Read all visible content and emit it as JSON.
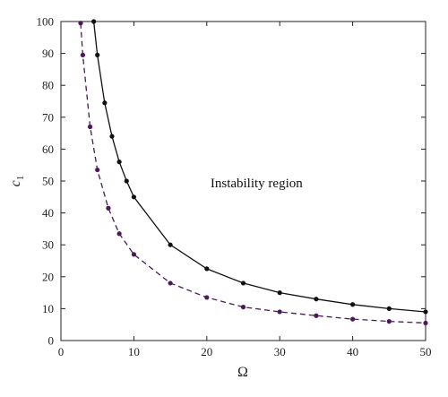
{
  "chart_data": {
    "type": "line",
    "title": "",
    "xlabel": "Ω",
    "ylabel": "c",
    "ylabel_subscript": "1",
    "xlim": [
      0,
      50
    ],
    "ylim": [
      0,
      100
    ],
    "x_ticks": [
      0,
      10,
      20,
      30,
      40,
      50
    ],
    "y_ticks": [
      0,
      10,
      20,
      30,
      40,
      50,
      60,
      70,
      80,
      90,
      100
    ],
    "grid": false,
    "annotations": [
      {
        "text": "Instability region",
        "x": 20.5,
        "y": 49.5
      }
    ],
    "series": [
      {
        "style": "solid",
        "color": "#111111",
        "points": [
          [
            4.5,
            100
          ],
          [
            5,
            89.5
          ],
          [
            6,
            74.5
          ],
          [
            7,
            64
          ],
          [
            8,
            56
          ],
          [
            9,
            50
          ],
          [
            10,
            45
          ],
          [
            15,
            30
          ],
          [
            20,
            22.5
          ],
          [
            25,
            18
          ],
          [
            30,
            15
          ],
          [
            35,
            13
          ],
          [
            40,
            11.3
          ],
          [
            45,
            10
          ],
          [
            50,
            9
          ]
        ]
      },
      {
        "style": "dashed",
        "color": "#4a1a55",
        "points": [
          [
            2.7,
            99.5
          ],
          [
            3,
            89.5
          ],
          [
            4,
            67
          ],
          [
            5,
            53.5
          ],
          [
            6.5,
            41.5
          ],
          [
            8,
            33.5
          ],
          [
            10,
            27
          ],
          [
            15,
            18
          ],
          [
            20,
            13.5
          ],
          [
            25,
            10.5
          ],
          [
            30,
            9
          ],
          [
            35,
            7.8
          ],
          [
            40,
            6.7
          ],
          [
            45,
            6
          ],
          [
            50,
            5.5
          ]
        ]
      }
    ]
  }
}
